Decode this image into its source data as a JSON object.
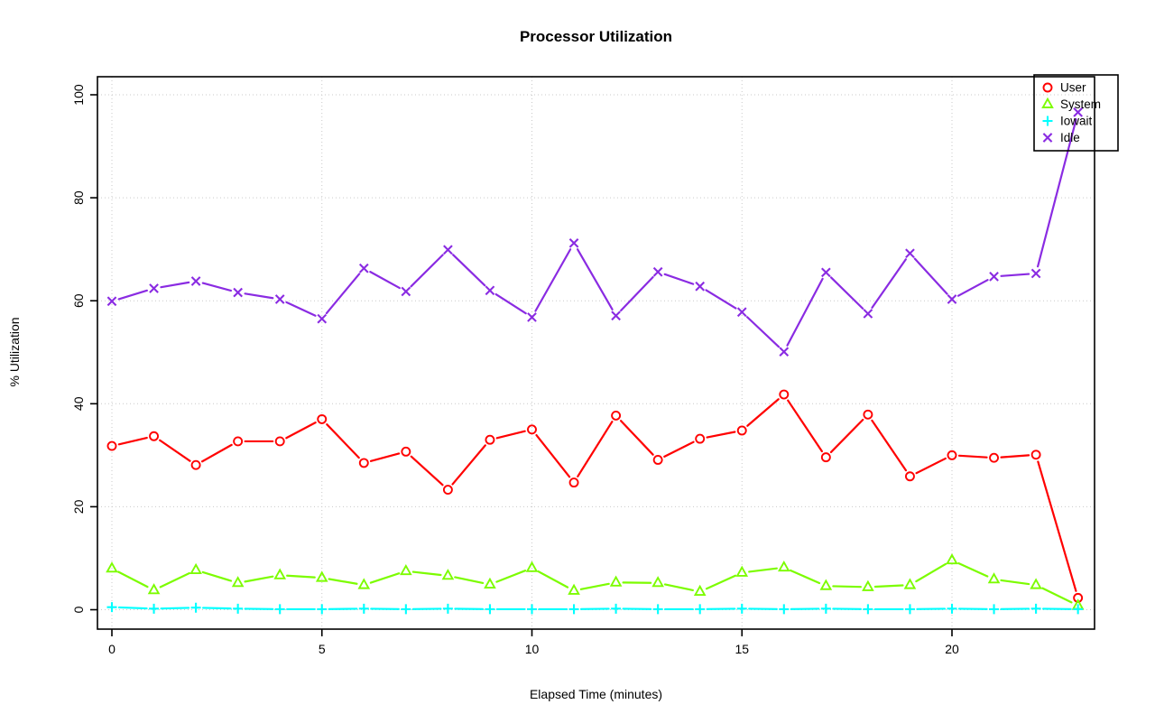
{
  "page": {
    "background": "#ffffff"
  },
  "chart_data": {
    "type": "line",
    "title": "Processor Utilization",
    "xlabel": "Elapsed Time (minutes)",
    "ylabel": "% Utilization",
    "x": [
      0,
      1,
      2,
      3,
      4,
      5,
      6,
      7,
      8,
      9,
      10,
      11,
      12,
      13,
      14,
      15,
      16,
      17,
      18,
      19,
      20,
      21,
      22,
      23
    ],
    "x_ticks": [
      0,
      5,
      10,
      15,
      20
    ],
    "y_ticks": [
      0,
      20,
      40,
      60,
      80,
      100
    ],
    "xlim": [
      -0.4,
      23.4
    ],
    "ylim": [
      0,
      100
    ],
    "grid": "dotted",
    "legend_position": "top-right",
    "series": [
      {
        "name": "User",
        "color": "#ff0000",
        "marker": "circle",
        "values": [
          31.8,
          33.7,
          28.1,
          32.7,
          32.7,
          37.0,
          28.5,
          30.7,
          23.3,
          33.0,
          35.0,
          24.7,
          37.7,
          29.1,
          33.2,
          34.8,
          41.8,
          29.6,
          37.9,
          25.9,
          30.0,
          29.5,
          30.1,
          2.3
        ]
      },
      {
        "name": "System",
        "color": "#7cfc00",
        "marker": "triangle",
        "values": [
          8.0,
          3.8,
          7.7,
          5.2,
          6.7,
          6.2,
          4.8,
          7.5,
          6.6,
          4.9,
          8.1,
          3.7,
          5.3,
          5.2,
          3.5,
          7.2,
          8.2,
          4.6,
          4.4,
          4.8,
          9.6,
          5.9,
          4.8,
          0.8
        ]
      },
      {
        "name": "Iowait",
        "color": "#00ffff",
        "marker": "plus",
        "values": [
          0.5,
          0.2,
          0.4,
          0.2,
          0.1,
          0.1,
          0.2,
          0.1,
          0.2,
          0.1,
          0.1,
          0.1,
          0.2,
          0.1,
          0.1,
          0.2,
          0.1,
          0.2,
          0.1,
          0.1,
          0.2,
          0.1,
          0.2,
          0.1
        ]
      },
      {
        "name": "Idle",
        "color": "#8a2be2",
        "marker": "x",
        "values": [
          59.9,
          62.4,
          63.8,
          61.6,
          60.3,
          56.5,
          66.3,
          61.8,
          69.9,
          62.0,
          56.8,
          71.2,
          57.1,
          65.6,
          62.8,
          57.8,
          50.1,
          65.5,
          57.5,
          69.2,
          60.3,
          64.7,
          65.3,
          96.6
        ]
      }
    ]
  }
}
